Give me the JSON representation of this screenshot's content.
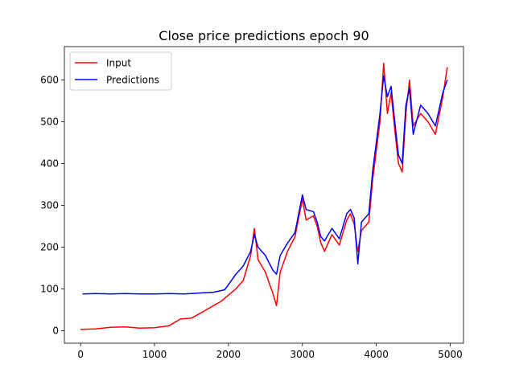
{
  "chart_data": {
    "type": "line",
    "title": "Close price predictions epoch 90",
    "xlabel": "",
    "ylabel": "",
    "xlim": [
      -220,
      5180
    ],
    "ylim": [
      -30,
      680
    ],
    "xticks": [
      0,
      1000,
      2000,
      3000,
      4000,
      5000
    ],
    "yticks": [
      0,
      100,
      200,
      300,
      400,
      500,
      600
    ],
    "grid": false,
    "legend_position": "top-left",
    "series": [
      {
        "name": "Input",
        "color": "#ff0000",
        "points": [
          [
            0,
            3
          ],
          [
            200,
            4
          ],
          [
            400,
            8
          ],
          [
            600,
            9
          ],
          [
            800,
            6
          ],
          [
            1000,
            7
          ],
          [
            1200,
            12
          ],
          [
            1350,
            28
          ],
          [
            1500,
            30
          ],
          [
            1650,
            45
          ],
          [
            1800,
            60
          ],
          [
            1900,
            70
          ],
          [
            2000,
            85
          ],
          [
            2100,
            100
          ],
          [
            2200,
            120
          ],
          [
            2300,
            180
          ],
          [
            2350,
            245
          ],
          [
            2400,
            170
          ],
          [
            2500,
            140
          ],
          [
            2600,
            90
          ],
          [
            2650,
            60
          ],
          [
            2700,
            140
          ],
          [
            2800,
            190
          ],
          [
            2900,
            225
          ],
          [
            3000,
            315
          ],
          [
            3050,
            265
          ],
          [
            3150,
            275
          ],
          [
            3200,
            250
          ],
          [
            3250,
            210
          ],
          [
            3300,
            190
          ],
          [
            3400,
            230
          ],
          [
            3500,
            205
          ],
          [
            3600,
            265
          ],
          [
            3650,
            280
          ],
          [
            3700,
            255
          ],
          [
            3750,
            190
          ],
          [
            3800,
            240
          ],
          [
            3900,
            260
          ],
          [
            3950,
            360
          ],
          [
            4000,
            430
          ],
          [
            4050,
            500
          ],
          [
            4100,
            640
          ],
          [
            4150,
            520
          ],
          [
            4200,
            570
          ],
          [
            4250,
            480
          ],
          [
            4300,
            400
          ],
          [
            4350,
            380
          ],
          [
            4400,
            520
          ],
          [
            4450,
            600
          ],
          [
            4500,
            490
          ],
          [
            4600,
            520
          ],
          [
            4700,
            500
          ],
          [
            4800,
            470
          ],
          [
            4900,
            560
          ],
          [
            4960,
            630
          ]
        ]
      },
      {
        "name": "Predictions",
        "color": "#0000ff",
        "points": [
          [
            30,
            88
          ],
          [
            200,
            89
          ],
          [
            400,
            88
          ],
          [
            600,
            89
          ],
          [
            800,
            88
          ],
          [
            1000,
            88
          ],
          [
            1200,
            89
          ],
          [
            1400,
            88
          ],
          [
            1600,
            90
          ],
          [
            1800,
            92
          ],
          [
            1950,
            98
          ],
          [
            2000,
            110
          ],
          [
            2100,
            135
          ],
          [
            2200,
            155
          ],
          [
            2300,
            190
          ],
          [
            2350,
            230
          ],
          [
            2400,
            200
          ],
          [
            2500,
            180
          ],
          [
            2600,
            145
          ],
          [
            2650,
            135
          ],
          [
            2700,
            180
          ],
          [
            2800,
            210
          ],
          [
            2900,
            235
          ],
          [
            3000,
            325
          ],
          [
            3050,
            290
          ],
          [
            3150,
            285
          ],
          [
            3200,
            260
          ],
          [
            3250,
            225
          ],
          [
            3300,
            215
          ],
          [
            3400,
            245
          ],
          [
            3500,
            220
          ],
          [
            3600,
            280
          ],
          [
            3650,
            290
          ],
          [
            3700,
            270
          ],
          [
            3750,
            160
          ],
          [
            3800,
            260
          ],
          [
            3900,
            280
          ],
          [
            3950,
            380
          ],
          [
            4000,
            450
          ],
          [
            4050,
            520
          ],
          [
            4100,
            610
          ],
          [
            4150,
            560
          ],
          [
            4200,
            585
          ],
          [
            4250,
            500
          ],
          [
            4300,
            420
          ],
          [
            4350,
            400
          ],
          [
            4400,
            540
          ],
          [
            4450,
            580
          ],
          [
            4500,
            470
          ],
          [
            4600,
            540
          ],
          [
            4700,
            520
          ],
          [
            4800,
            490
          ],
          [
            4900,
            570
          ],
          [
            4960,
            600
          ]
        ]
      }
    ]
  }
}
